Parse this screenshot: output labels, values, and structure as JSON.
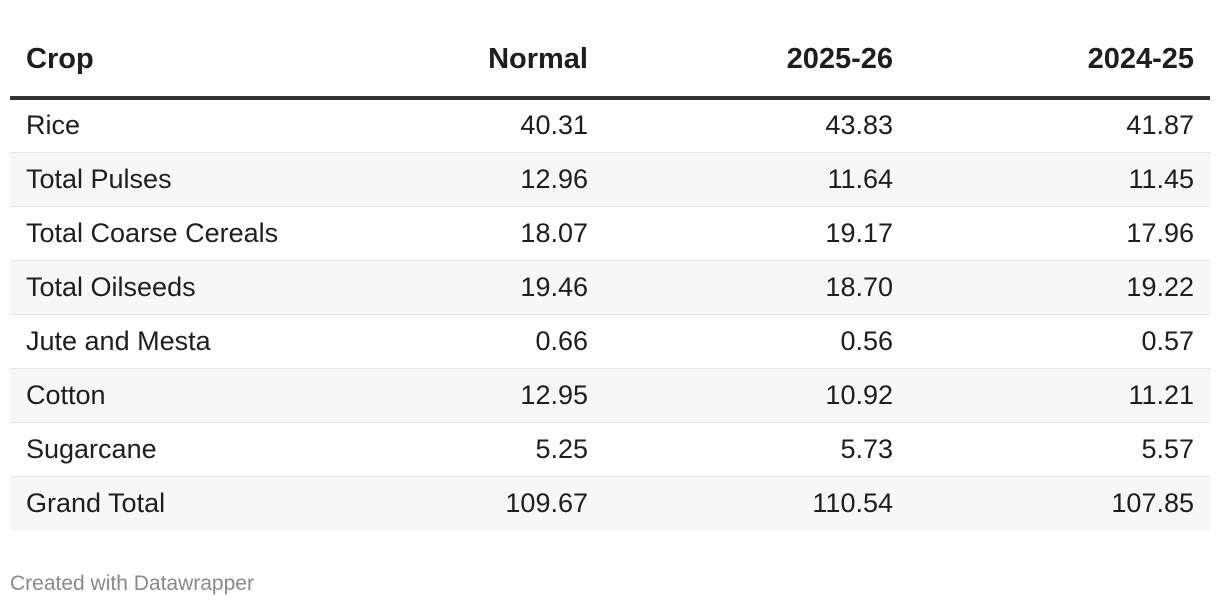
{
  "chart_data": {
    "type": "table",
    "columns": [
      "Crop",
      "Normal",
      "2025-26",
      "2024-25"
    ],
    "rows": [
      [
        "Rice",
        "40.31",
        "43.83",
        "41.87"
      ],
      [
        "Total Pulses",
        "12.96",
        "11.64",
        "11.45"
      ],
      [
        "Total Coarse Cereals",
        "18.07",
        "19.17",
        "17.96"
      ],
      [
        "Total Oilseeds",
        "19.46",
        "18.70",
        "19.22"
      ],
      [
        "Jute and Mesta",
        "0.66",
        "0.56",
        "0.57"
      ],
      [
        "Cotton",
        "12.95",
        "10.92",
        "11.21"
      ],
      [
        "Sugarcane",
        "5.25",
        "5.73",
        "5.57"
      ],
      [
        "Grand Total",
        "109.67",
        "110.54",
        "107.85"
      ]
    ]
  },
  "footer": "Created with Datawrapper"
}
